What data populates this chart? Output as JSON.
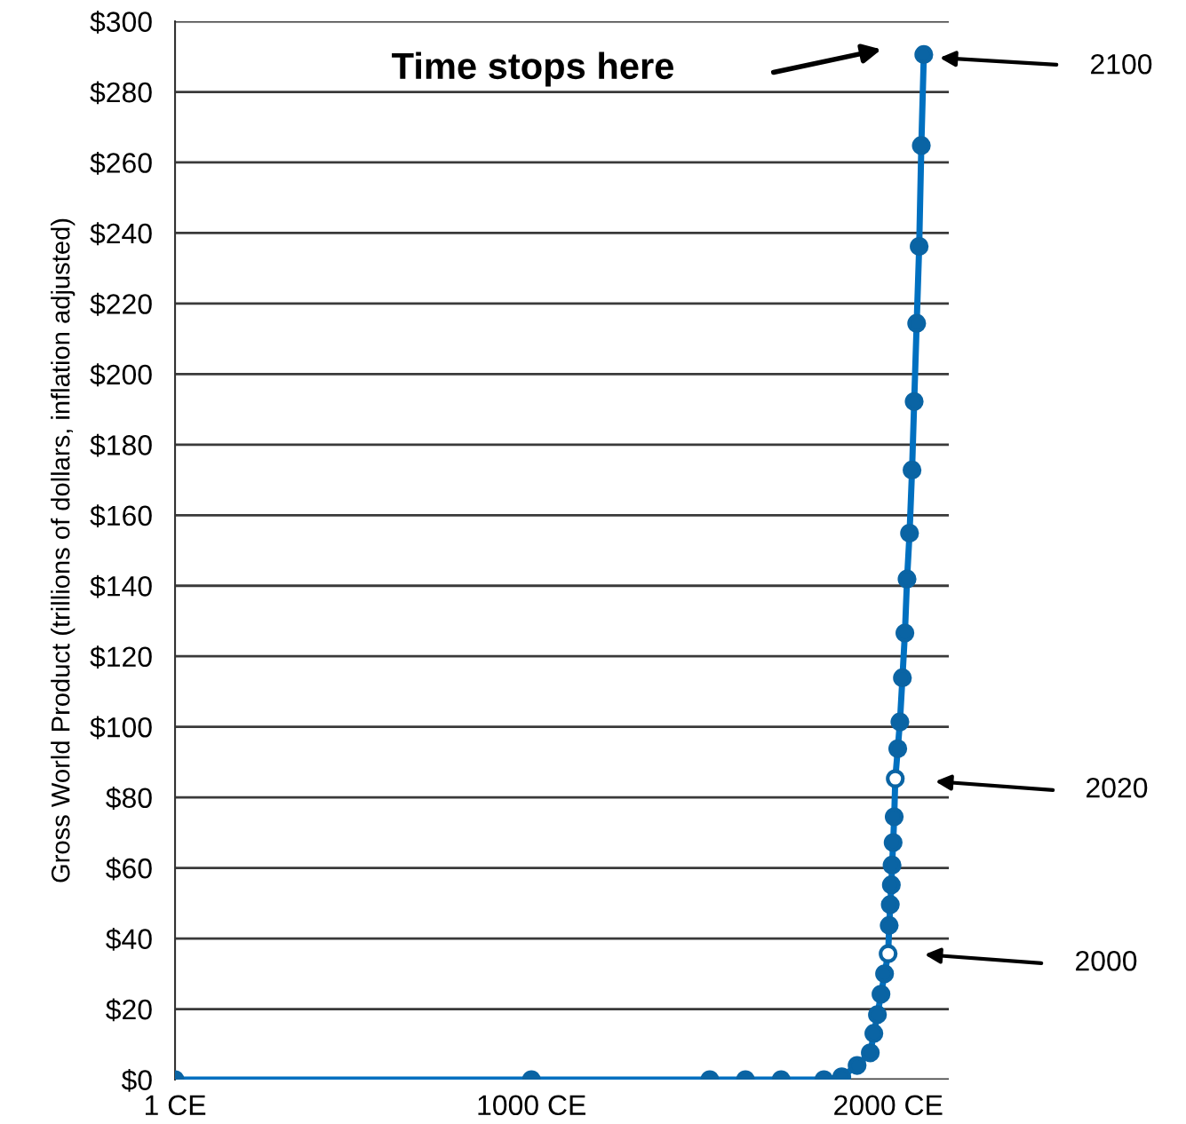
{
  "chart_data": {
    "type": "line",
    "ylabel": "Gross World Product (trillions of dollars, inflation adjusted)",
    "x": [
      1,
      1000,
      1500,
      1600,
      1700,
      1820,
      1870,
      1913,
      1950,
      1960,
      1970,
      1980,
      1990,
      2000,
      2003,
      2006,
      2009,
      2011,
      2014,
      2017,
      2020,
      2027,
      2033,
      2040,
      2047,
      2053,
      2060,
      2067,
      2073,
      2080,
      2087,
      2093,
      2100
    ],
    "series": [
      {
        "color": "#0070c0",
        "values": [
          0,
          0,
          0,
          0,
          0,
          0,
          0.8,
          4.0,
          7.6,
          13.1,
          18.4,
          24.2,
          30.0,
          35.7,
          43.7,
          49.6,
          55.2,
          60.8,
          67.2,
          74.5,
          85.3,
          93.8,
          101.4,
          113.9,
          126.6,
          141.9,
          154.9,
          172.8,
          192.2,
          214.4,
          236.2,
          264.8,
          290.6
        ],
        "colors": [
          "#0a64a4",
          "#0a64a4",
          "#0a64a4",
          "#0a64a4",
          "#0a64a4",
          "#0a64a4",
          "#0a64a4",
          "#0a64a4",
          "#0a64a4",
          "#0a64a4",
          "#0a64a4",
          "#0a64a4",
          "#0a64a4",
          "#ffffff",
          "#0a64a4",
          "#0a64a4",
          "#0a64a4",
          "#0a64a4",
          "#0a64a4",
          "#0a64a4",
          "#ffffff",
          "#0a64a4",
          "#0a64a4",
          "#0a64a4",
          "#0a64a4",
          "#0a64a4",
          "#0a64a4",
          "#0a64a4",
          "#0a64a4",
          "#0a64a4",
          "#0a64a4",
          "#0a64a4",
          "#0a64a4"
        ]
      }
    ],
    "marker": "circle",
    "line_style": "solid",
    "xlim": [
      1,
      2170
    ],
    "xticks": [
      {
        "value": 1,
        "label": "1 CE"
      },
      {
        "value": 1000,
        "label": "1000 CE"
      },
      {
        "value": 2000,
        "label": "2000 CE"
      }
    ],
    "ylim": [
      0,
      300
    ],
    "yticks": [
      {
        "value": 0,
        "label": "$0"
      },
      {
        "value": 20,
        "label": "$20"
      },
      {
        "value": 40,
        "label": "$40"
      },
      {
        "value": 60,
        "label": "$60"
      },
      {
        "value": 80,
        "label": "$80"
      },
      {
        "value": 100,
        "label": "$100"
      },
      {
        "value": 120,
        "label": "$120"
      },
      {
        "value": 140,
        "label": "$140"
      },
      {
        "value": 160,
        "label": "$160"
      },
      {
        "value": 180,
        "label": "$180"
      },
      {
        "value": 200,
        "label": "$200"
      },
      {
        "value": 220,
        "label": "$220"
      },
      {
        "value": 240,
        "label": "$240"
      },
      {
        "value": 260,
        "label": "$260"
      },
      {
        "value": 280,
        "label": "$280"
      },
      {
        "value": 300,
        "label": "$300"
      }
    ],
    "grid": "y",
    "annotations": [
      "Time stops here",
      "2100",
      "2020",
      "2000"
    ]
  }
}
